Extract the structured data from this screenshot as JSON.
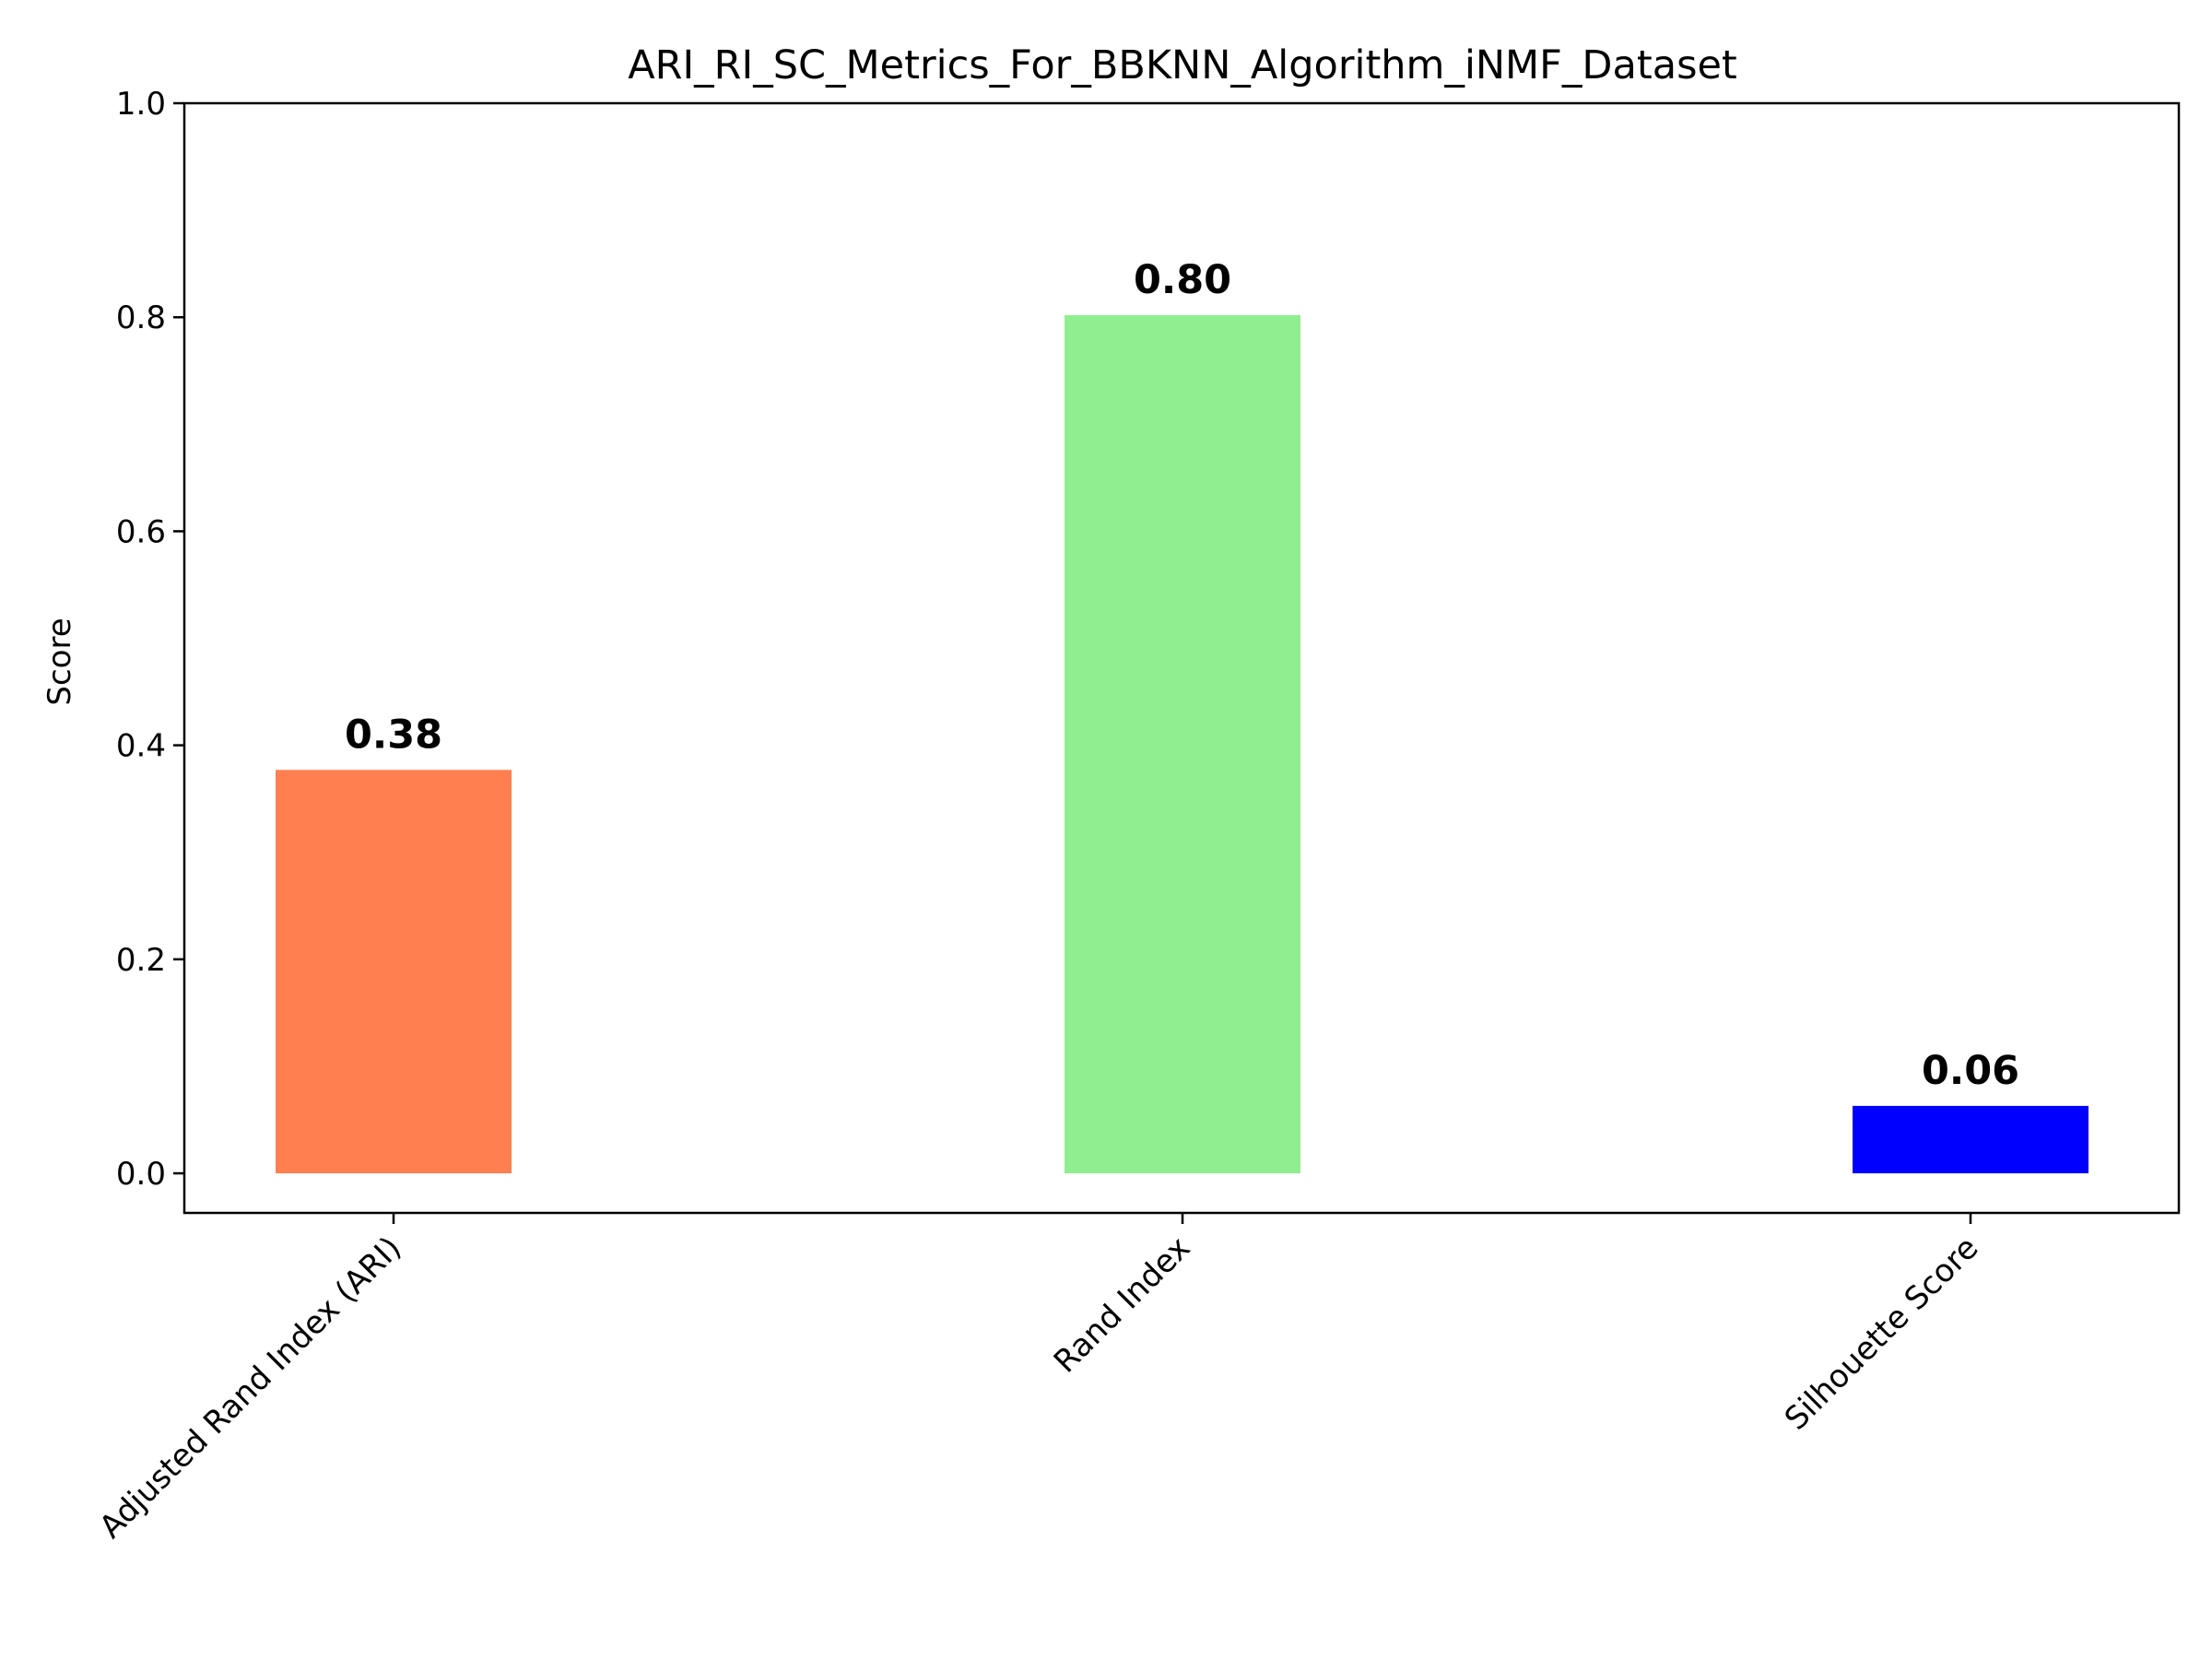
{
  "chart_data": {
    "type": "bar",
    "title": "ARI_RI_SC_Metrics_For_BBKNN_Algorithm_iNMF_Dataset",
    "xlabel": "",
    "ylabel": "Score",
    "categories": [
      "Adjusted Rand Index (ARI)",
      "Rand Index",
      "Silhouette Score"
    ],
    "values": [
      0.377,
      0.802,
      0.063
    ],
    "value_labels": [
      "0.38",
      "0.80",
      "0.06"
    ],
    "colors": [
      "#ff7f50",
      "#90ee90",
      "#0000ff"
    ],
    "ylim": [
      -0.037,
      1.0
    ],
    "yticks": [
      "0.0",
      "0.2",
      "0.4",
      "0.6",
      "0.8",
      "1.0"
    ],
    "grid": false
  }
}
